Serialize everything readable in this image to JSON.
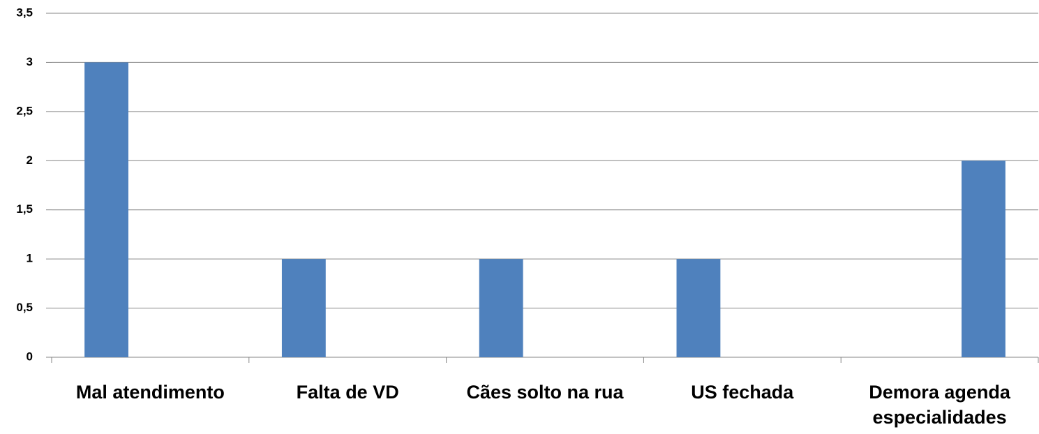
{
  "chart_data": {
    "type": "bar",
    "categories": [
      "Mal atendimento",
      "Falta de VD",
      "Cães solto na rua",
      "US fechada",
      "Demora agenda especialidades"
    ],
    "series": [
      {
        "color": "#4f81bd",
        "values": [
          3,
          1,
          1,
          1,
          null
        ]
      },
      {
        "color": "#c0504d",
        "values": [
          null,
          null,
          null,
          null,
          null
        ]
      },
      {
        "color": "#4f81bd",
        "values": [
          null,
          null,
          null,
          null,
          2
        ]
      }
    ],
    "ylim": [
      0,
      3.5
    ],
    "yticks": [
      0,
      {
        "value": 0.5,
        "label": "0,5"
      },
      1,
      {
        "value": 1.5,
        "label": "1,5"
      },
      2,
      {
        "value": 2.5,
        "label": "2,5"
      },
      3,
      {
        "value": 3.5,
        "label": "3,5"
      }
    ],
    "grid": true
  }
}
